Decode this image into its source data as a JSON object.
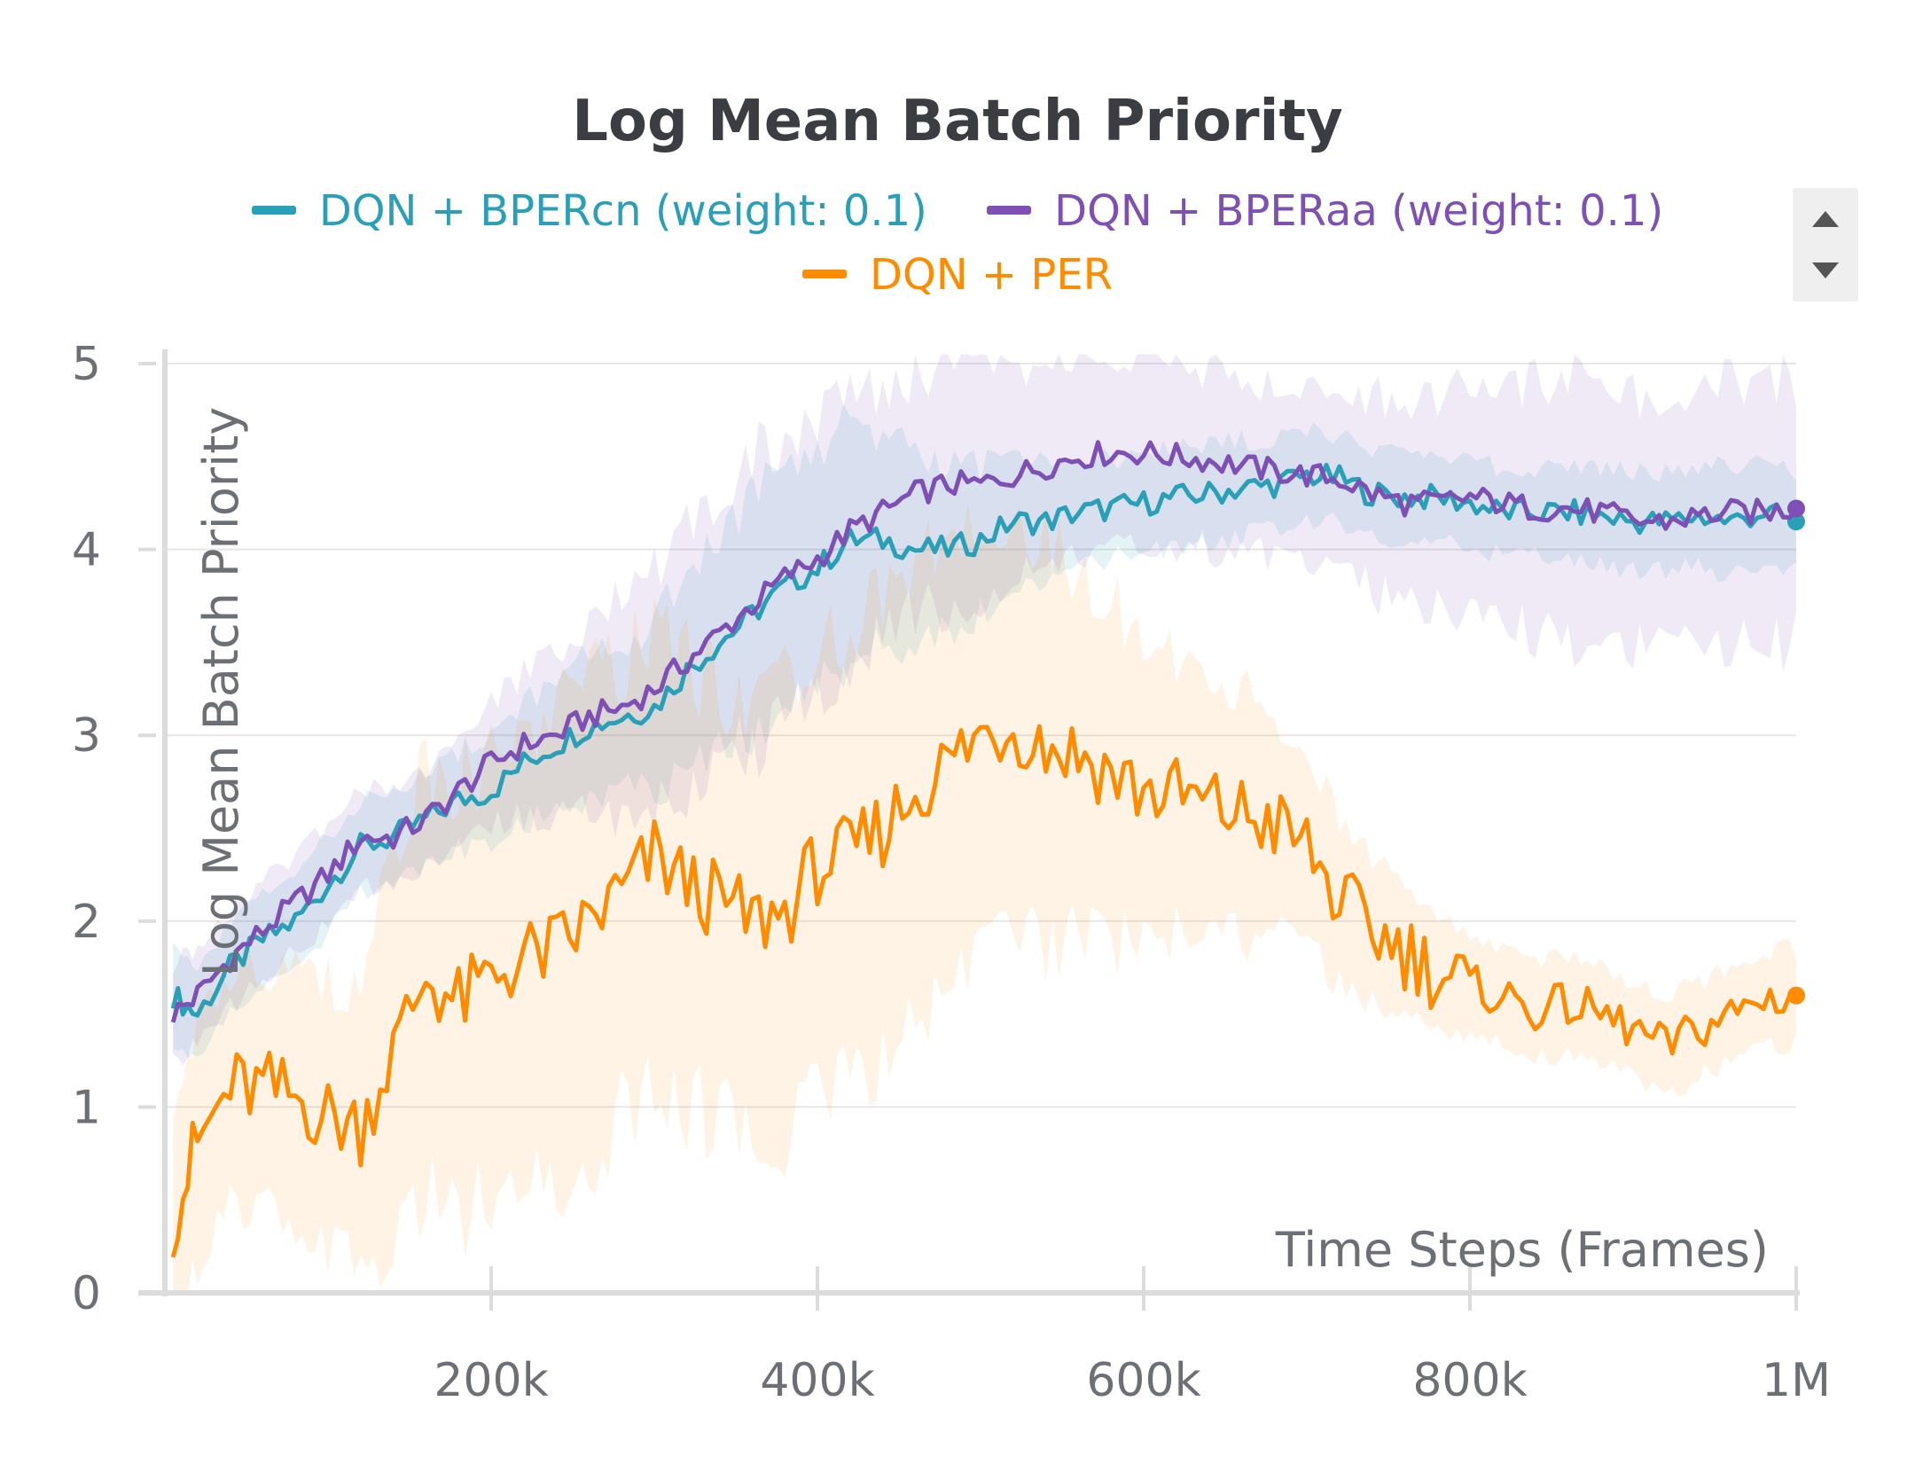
{
  "chart_data": {
    "type": "line",
    "title": "Log Mean Batch Priority",
    "xlabel": "Time Steps (Frames)",
    "ylabel": "Log Mean Batch Priority",
    "xlim": [
      0,
      1000000
    ],
    "ylim": [
      0,
      5
    ],
    "xticks": [
      {
        "value": 200000,
        "label": "200k"
      },
      {
        "value": 400000,
        "label": "400k"
      },
      {
        "value": 600000,
        "label": "600k"
      },
      {
        "value": 800000,
        "label": "800k"
      },
      {
        "value": 1000000,
        "label": "1M"
      }
    ],
    "yticks": [
      {
        "value": 0,
        "label": "0"
      },
      {
        "value": 1,
        "label": "1"
      },
      {
        "value": 2,
        "label": "2"
      },
      {
        "value": 3,
        "label": "3"
      },
      {
        "value": 4,
        "label": "4"
      },
      {
        "value": 5,
        "label": "5"
      }
    ],
    "grid": true,
    "legend_position": "top",
    "series": [
      {
        "name": "DQN + BPERcn (weight: 0.1)",
        "color": "#2aa0b8",
        "x": [
          5000,
          20000,
          40000,
          60000,
          80000,
          100000,
          120000,
          140000,
          160000,
          180000,
          200000,
          220000,
          240000,
          260000,
          280000,
          300000,
          320000,
          340000,
          360000,
          380000,
          400000,
          420000,
          440000,
          460000,
          480000,
          500000,
          520000,
          540000,
          560000,
          580000,
          600000,
          620000,
          640000,
          660000,
          680000,
          700000,
          720000,
          740000,
          760000,
          780000,
          800000,
          820000,
          840000,
          860000,
          880000,
          900000,
          920000,
          940000,
          960000,
          980000,
          1000000
        ],
        "y": [
          1.6,
          1.5,
          1.75,
          1.9,
          2.0,
          2.2,
          2.4,
          2.45,
          2.55,
          2.65,
          2.7,
          2.85,
          2.95,
          3.05,
          3.1,
          3.15,
          3.35,
          3.5,
          3.65,
          3.8,
          3.9,
          4.05,
          4.05,
          4.0,
          4.0,
          4.05,
          4.15,
          4.15,
          4.2,
          4.22,
          4.25,
          4.28,
          4.3,
          4.33,
          4.35,
          4.4,
          4.38,
          4.3,
          4.28,
          4.28,
          4.25,
          4.2,
          4.2,
          4.2,
          4.18,
          4.15,
          4.15,
          4.18,
          4.15,
          4.2,
          4.15
        ],
        "band": [
          0.18,
          0.18,
          0.2,
          0.2,
          0.2,
          0.2,
          0.2,
          0.2,
          0.2,
          0.2,
          0.25,
          0.25,
          0.25,
          0.3,
          0.3,
          0.35,
          0.4,
          0.45,
          0.5,
          0.5,
          0.5,
          0.5,
          0.4,
          0.4,
          0.35,
          0.3,
          0.28,
          0.25,
          0.22,
          0.2,
          0.2,
          0.2,
          0.2,
          0.2,
          0.18,
          0.18,
          0.18,
          0.18,
          0.18,
          0.18,
          0.18,
          0.18,
          0.18,
          0.18,
          0.2,
          0.2,
          0.2,
          0.2,
          0.22,
          0.22,
          0.22
        ]
      },
      {
        "name": "DQN + BPERaa (weight: 0.1)",
        "color": "#7e4fb5",
        "x": [
          5000,
          20000,
          40000,
          60000,
          80000,
          100000,
          120000,
          140000,
          160000,
          180000,
          200000,
          220000,
          240000,
          260000,
          280000,
          300000,
          320000,
          340000,
          360000,
          380000,
          400000,
          420000,
          440000,
          460000,
          480000,
          500000,
          520000,
          540000,
          560000,
          580000,
          600000,
          620000,
          640000,
          660000,
          680000,
          700000,
          720000,
          740000,
          760000,
          780000,
          800000,
          820000,
          840000,
          860000,
          880000,
          900000,
          920000,
          940000,
          960000,
          980000,
          1000000
        ],
        "y": [
          1.5,
          1.6,
          1.8,
          1.95,
          2.1,
          2.25,
          2.45,
          2.45,
          2.55,
          2.7,
          2.85,
          2.95,
          3.0,
          3.1,
          3.15,
          3.25,
          3.4,
          3.55,
          3.7,
          3.85,
          3.95,
          4.1,
          4.2,
          4.3,
          4.35,
          4.35,
          4.4,
          4.45,
          4.5,
          4.52,
          4.52,
          4.5,
          4.48,
          4.45,
          4.42,
          4.4,
          4.38,
          4.3,
          4.25,
          4.25,
          4.28,
          4.25,
          4.22,
          4.22,
          4.2,
          4.15,
          4.15,
          4.18,
          4.2,
          4.2,
          4.22
        ],
        "band": [
          0.2,
          0.2,
          0.2,
          0.2,
          0.2,
          0.2,
          0.2,
          0.2,
          0.2,
          0.22,
          0.25,
          0.3,
          0.35,
          0.4,
          0.45,
          0.5,
          0.55,
          0.6,
          0.6,
          0.6,
          0.6,
          0.55,
          0.5,
          0.5,
          0.5,
          0.48,
          0.45,
          0.42,
          0.4,
          0.38,
          0.38,
          0.36,
          0.36,
          0.36,
          0.36,
          0.36,
          0.38,
          0.4,
          0.42,
          0.45,
          0.48,
          0.5,
          0.52,
          0.55,
          0.55,
          0.55,
          0.55,
          0.55,
          0.55,
          0.55,
          0.55
        ]
      },
      {
        "name": "DQN + PER",
        "color": "#ff8c00",
        "x": [
          5000,
          20000,
          40000,
          60000,
          80000,
          100000,
          120000,
          140000,
          160000,
          180000,
          200000,
          220000,
          240000,
          260000,
          280000,
          300000,
          320000,
          340000,
          360000,
          380000,
          400000,
          420000,
          440000,
          460000,
          480000,
          500000,
          520000,
          540000,
          560000,
          580000,
          600000,
          620000,
          640000,
          660000,
          680000,
          700000,
          720000,
          740000,
          760000,
          780000,
          800000,
          820000,
          840000,
          860000,
          880000,
          900000,
          920000,
          940000,
          960000,
          980000,
          1000000
        ],
        "y": [
          0.4,
          0.8,
          1.1,
          1.1,
          1.05,
          0.95,
          0.9,
          1.3,
          1.7,
          1.55,
          1.7,
          1.8,
          1.85,
          2.0,
          2.15,
          2.35,
          2.2,
          2.1,
          2.0,
          2.05,
          2.3,
          2.35,
          2.5,
          2.7,
          2.85,
          3.0,
          3.05,
          2.95,
          2.9,
          2.8,
          2.7,
          2.68,
          2.62,
          2.58,
          2.52,
          2.4,
          2.1,
          1.95,
          1.85,
          1.72,
          1.65,
          1.6,
          1.52,
          1.55,
          1.5,
          1.42,
          1.32,
          1.42,
          1.5,
          1.58,
          1.6
        ],
        "band": [
          0.4,
          0.5,
          0.5,
          0.5,
          0.5,
          0.55,
          0.6,
          0.8,
          0.9,
          0.9,
          0.9,
          0.95,
          0.95,
          0.95,
          0.95,
          0.95,
          0.95,
          0.9,
          0.9,
          0.9,
          0.9,
          0.9,
          0.9,
          0.9,
          0.9,
          0.9,
          0.85,
          0.8,
          0.75,
          0.7,
          0.65,
          0.6,
          0.55,
          0.5,
          0.45,
          0.4,
          0.35,
          0.3,
          0.25,
          0.22,
          0.2,
          0.2,
          0.2,
          0.2,
          0.2,
          0.2,
          0.2,
          0.2,
          0.2,
          0.2,
          0.2
        ]
      }
    ]
  },
  "scroll_controls": {
    "up_icon": "caret-up-icon",
    "down_icon": "caret-down-icon"
  }
}
